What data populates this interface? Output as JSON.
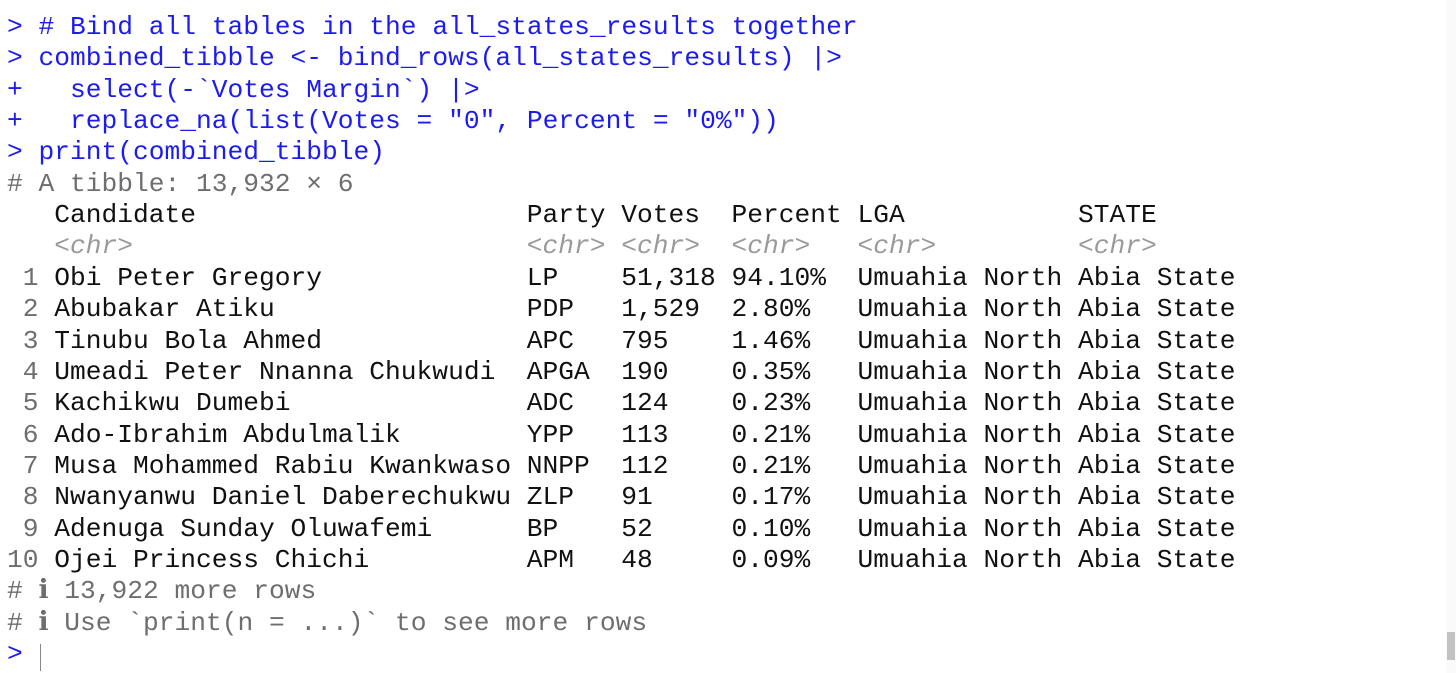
{
  "console": {
    "commands": [
      {
        "prompt": ">",
        "code": "# Bind all tables in the all_states_results together"
      },
      {
        "prompt": ">",
        "code": "combined_tibble <- bind_rows(all_states_results) |>"
      },
      {
        "prompt": "+",
        "code": "  select(-`Votes Margin`) |>"
      },
      {
        "prompt": "+",
        "code": "  replace_na(list(Votes = \"0\", Percent = \"0%\"))"
      },
      {
        "prompt": ">",
        "code": "print(combined_tibble)"
      }
    ],
    "output_header": "# A tibble: 13,932 × 6",
    "table": {
      "columns": [
        "Candidate",
        "Party",
        "Votes",
        "Percent",
        "LGA",
        "STATE"
      ],
      "types": [
        "<chr>",
        "<chr>",
        "<chr>",
        "<chr>",
        "<chr>",
        "<chr>"
      ],
      "rows": [
        {
          "index": "1",
          "cells": [
            "Obi Peter Gregory",
            "LP",
            "51,318",
            "94.10%",
            "Umuahia North",
            "Abia State"
          ]
        },
        {
          "index": "2",
          "cells": [
            "Abubakar Atiku",
            "PDP",
            "1,529",
            "2.80%",
            "Umuahia North",
            "Abia State"
          ]
        },
        {
          "index": "3",
          "cells": [
            "Tinubu Bola Ahmed",
            "APC",
            "795",
            "1.46%",
            "Umuahia North",
            "Abia State"
          ]
        },
        {
          "index": "4",
          "cells": [
            "Umeadi Peter Nnanna Chukwudi",
            "APGA",
            "190",
            "0.35%",
            "Umuahia North",
            "Abia State"
          ]
        },
        {
          "index": "5",
          "cells": [
            "Kachikwu Dumebi",
            "ADC",
            "124",
            "0.23%",
            "Umuahia North",
            "Abia State"
          ]
        },
        {
          "index": "6",
          "cells": [
            "Ado-Ibrahim Abdulmalik",
            "YPP",
            "113",
            "0.21%",
            "Umuahia North",
            "Abia State"
          ]
        },
        {
          "index": "7",
          "cells": [
            "Musa Mohammed Rabiu Kwankwaso",
            "NNPP",
            "112",
            "0.21%",
            "Umuahia North",
            "Abia State"
          ]
        },
        {
          "index": "8",
          "cells": [
            "Nwanyanwu Daniel Daberechukwu",
            "ZLP",
            "91",
            "0.17%",
            "Umuahia North",
            "Abia State"
          ]
        },
        {
          "index": "9",
          "cells": [
            "Adenuga Sunday Oluwafemi",
            "BP",
            "52",
            "0.10%",
            "Umuahia North",
            "Abia State"
          ]
        },
        {
          "index": "10",
          "cells": [
            "Ojei Princess Chichi",
            "APM",
            "48",
            "0.09%",
            "Umuahia North",
            "Abia State"
          ]
        }
      ]
    },
    "footer": [
      "# ℹ 13,922 more rows",
      "# ℹ Use `print(n = ...)` to see more rows"
    ],
    "final_prompt": ">"
  }
}
